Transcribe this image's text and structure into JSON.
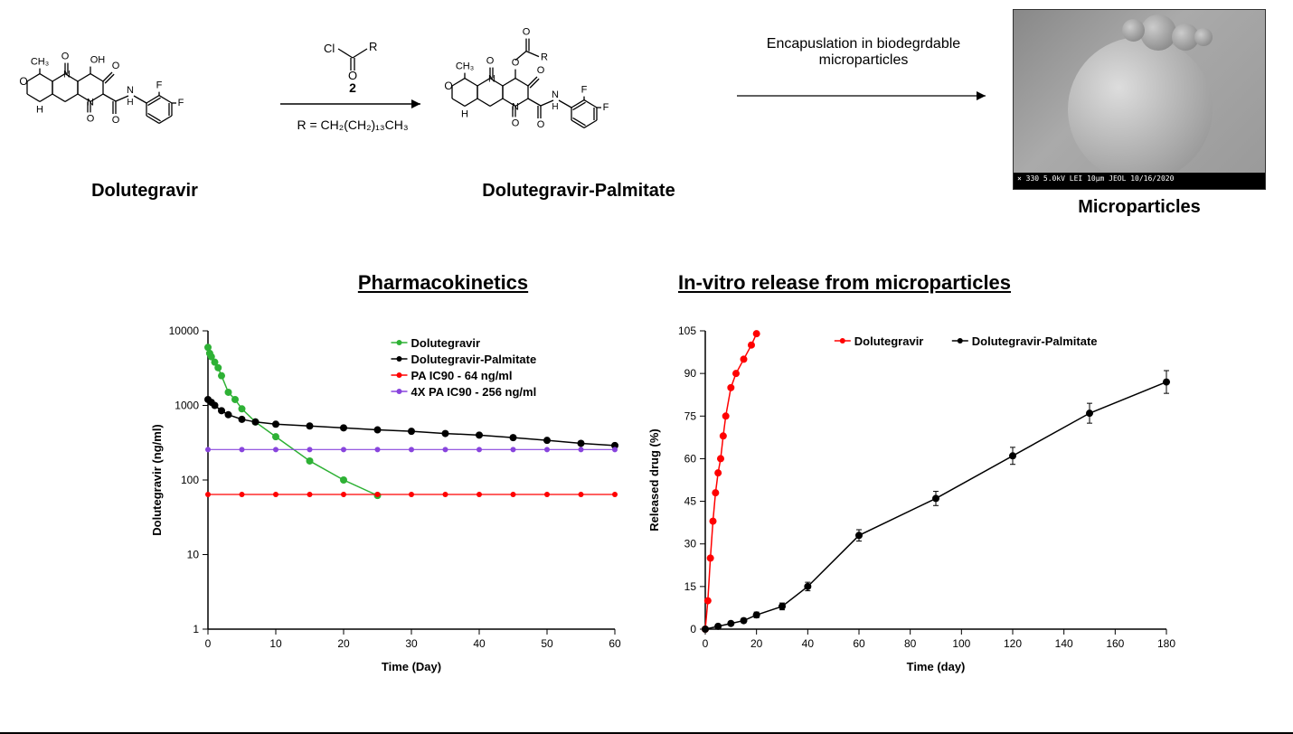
{
  "top": {
    "compound1_label": "Dolutegravir",
    "compound2_label": "Dolutegravir-Palmitate",
    "microparticle_label": "Microparticles",
    "reagent_top": "Cl",
    "reagent_o": "O",
    "reagent_r": "R",
    "reagent_num": "2",
    "r_def": "R = CH₂(CH₂)₁₃CH₃",
    "arrow2_label_line1": "Encapuslation in biodegrdable",
    "arrow2_label_line2": "microparticles",
    "sem_scalebar": "× 330   5.0kV  LEI   10µm  JEOL  10/16/2020",
    "chem_atoms": {
      "ch3": "CH₃",
      "o": "O",
      "oh": "OH",
      "n": "N",
      "h": "H",
      "f": "F",
      "r": "R"
    }
  },
  "pk_chart": {
    "title": "Pharmacokinetics",
    "type": "line",
    "xlabel": "Time (Day)",
    "ylabel": "Dolutegravir (ng/ml)",
    "yscale": "log",
    "xlim": [
      0,
      60
    ],
    "ylim": [
      1,
      10000
    ],
    "xtick_step": 10,
    "yticks": [
      1,
      10,
      100,
      1000,
      10000
    ],
    "axis_fontsize": 12,
    "label_fontsize": 13,
    "grid": false,
    "background_color": "#ffffff",
    "axis_color": "#000000",
    "legend_position": "top-right-inner",
    "series": [
      {
        "name": "Dolutegravir",
        "color": "#2eb135",
        "marker": "circle",
        "marker_size": 4,
        "line_width": 1.5,
        "x": [
          0,
          0.25,
          0.5,
          1,
          1.5,
          2,
          3,
          4,
          5,
          7,
          10,
          15,
          20,
          25
        ],
        "y": [
          6000,
          5000,
          4500,
          3800,
          3200,
          2500,
          1500,
          1200,
          900,
          600,
          380,
          180,
          100,
          62
        ]
      },
      {
        "name": "Dolutegravir-Palmitate",
        "color": "#000000",
        "marker": "circle",
        "marker_size": 4,
        "line_width": 1.5,
        "x": [
          0,
          0.5,
          1,
          2,
          3,
          5,
          7,
          10,
          15,
          20,
          25,
          30,
          35,
          40,
          45,
          50,
          55,
          60
        ],
        "y": [
          1200,
          1100,
          1000,
          850,
          750,
          650,
          600,
          560,
          530,
          500,
          470,
          450,
          420,
          400,
          370,
          340,
          310,
          290
        ]
      },
      {
        "name": "PA IC90 - 64 ng/ml",
        "color": "#ff0000",
        "marker": "circle",
        "marker_size": 3,
        "line_width": 1.2,
        "x": [
          0,
          5,
          10,
          15,
          20,
          25,
          30,
          35,
          40,
          45,
          50,
          55,
          60
        ],
        "y": [
          64,
          64,
          64,
          64,
          64,
          64,
          64,
          64,
          64,
          64,
          64,
          64,
          64
        ]
      },
      {
        "name": "4X PA IC90 - 256 ng/ml",
        "color": "#8844dd",
        "marker": "circle",
        "marker_size": 3,
        "line_width": 1.2,
        "x": [
          0,
          5,
          10,
          15,
          20,
          25,
          30,
          35,
          40,
          45,
          50,
          55,
          60
        ],
        "y": [
          256,
          256,
          256,
          256,
          256,
          256,
          256,
          256,
          256,
          256,
          256,
          256,
          256
        ]
      }
    ]
  },
  "release_chart": {
    "title": "In-vitro release from microparticles",
    "type": "line",
    "xlabel": "Time (day)",
    "ylabel": "Released drug (%)",
    "yscale": "linear",
    "xlim": [
      0,
      180
    ],
    "ylim": [
      0,
      105
    ],
    "xtick_step": 20,
    "ytick_step": 15,
    "axis_fontsize": 12,
    "label_fontsize": 13,
    "grid": false,
    "background_color": "#ffffff",
    "axis_color": "#000000",
    "legend_position": "top-center-inner",
    "series": [
      {
        "name": "Dolutegravir",
        "color": "#ff0000",
        "marker": "circle",
        "marker_size": 4,
        "line_width": 1.5,
        "x": [
          0,
          1,
          2,
          3,
          4,
          5,
          6,
          7,
          8,
          10,
          12,
          15,
          18,
          20
        ],
        "y": [
          0,
          10,
          25,
          38,
          48,
          55,
          60,
          68,
          75,
          85,
          90,
          95,
          100,
          104
        ],
        "yerr": [
          0,
          0,
          0,
          0,
          0,
          0,
          0,
          0,
          0,
          0,
          0,
          0,
          0,
          0
        ]
      },
      {
        "name": "Dolutegravir-Palmitate",
        "color": "#000000",
        "marker": "circle",
        "marker_size": 4,
        "line_width": 1.5,
        "x": [
          0,
          5,
          10,
          15,
          20,
          30,
          40,
          60,
          90,
          120,
          150,
          180
        ],
        "y": [
          0,
          1,
          2,
          3,
          5,
          8,
          15,
          33,
          46,
          61,
          76,
          87
        ],
        "yerr": [
          0,
          0.5,
          0.5,
          0.8,
          1,
          1.2,
          1.5,
          2,
          2.5,
          3,
          3.5,
          4
        ]
      }
    ]
  }
}
